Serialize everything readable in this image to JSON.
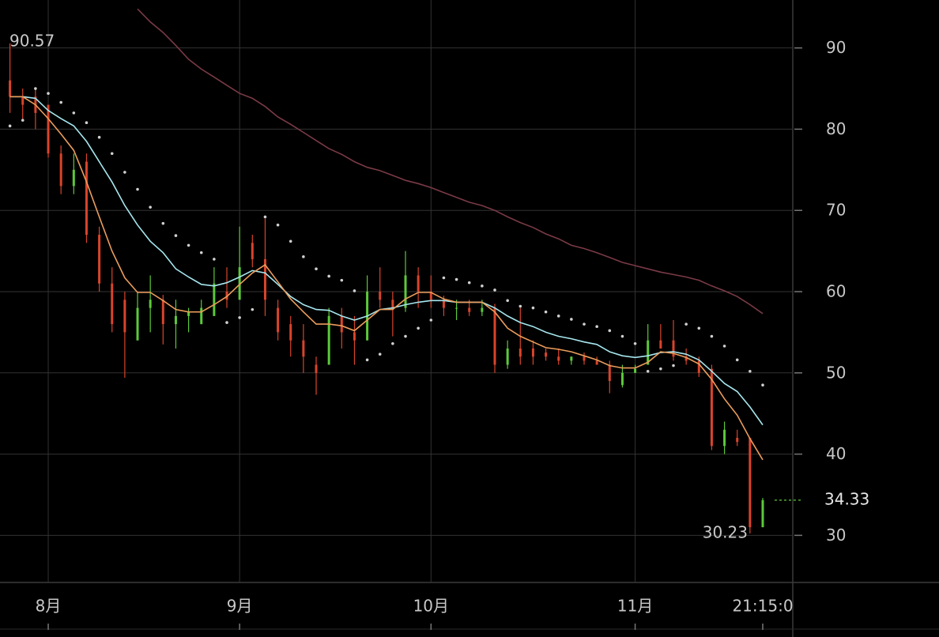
{
  "chart_data": {
    "type": "ohlc",
    "categories": [
      null,
      null,
      null,
      "8月",
      null,
      null,
      null,
      null,
      null,
      null,
      null,
      null,
      null,
      null,
      null,
      null,
      null,
      null,
      "9月",
      null,
      null,
      null,
      null,
      null,
      null,
      null,
      null,
      null,
      null,
      null,
      null,
      null,
      null,
      "10月",
      null,
      null,
      null,
      null,
      null,
      null,
      null,
      null,
      null,
      null,
      null,
      null,
      null,
      null,
      null,
      "11月",
      null,
      null,
      null,
      null,
      null,
      null,
      null,
      null,
      null,
      "21:15:0"
    ],
    "open": [
      86,
      84,
      84,
      83,
      77,
      73,
      76,
      67,
      61,
      59,
      54,
      58,
      59,
      56,
      57,
      56,
      57,
      60,
      59,
      66,
      64,
      58,
      56,
      54,
      51,
      51,
      57,
      55,
      54,
      60,
      59,
      58,
      62,
      60,
      59,
      58,
      58,
      57.5,
      58,
      51,
      53,
      53,
      52.5,
      52,
      51.5,
      52,
      51.5,
      51,
      48.5,
      50,
      51,
      54,
      54,
      52,
      51.5,
      50.5,
      41,
      42,
      42,
      31
    ],
    "high": [
      90.57,
      85,
      85,
      83,
      78,
      77,
      77,
      68,
      63,
      60,
      60,
      62,
      59.6,
      59,
      58,
      59,
      63,
      63,
      68,
      67,
      69,
      59,
      57,
      56,
      52,
      58,
      58,
      57,
      62,
      63,
      60,
      65,
      63,
      62,
      59.5,
      59,
      59,
      59,
      58.5,
      54,
      58,
      54,
      53,
      53,
      52,
      52.5,
      52,
      51.5,
      51,
      51,
      56,
      56,
      56.5,
      53,
      52,
      51,
      44,
      43,
      42,
      34.6
    ],
    "low": [
      82,
      81,
      80,
      76.5,
      72,
      72,
      66,
      60,
      55,
      49.4,
      54,
      55,
      53.5,
      53,
      55,
      56,
      57,
      58,
      59,
      63,
      57,
      54,
      52,
      50,
      47.3,
      51,
      53,
      51,
      54,
      58,
      54.5,
      57.5,
      58,
      58,
      57,
      56.5,
      57,
      57,
      50,
      50.5,
      51,
      51,
      51.5,
      51,
      51,
      51,
      51,
      47.5,
      48.2,
      50,
      51,
      53,
      51.5,
      51,
      49.5,
      40.5,
      40,
      41,
      30.23,
      31
    ],
    "close": [
      84,
      83,
      82,
      77,
      73,
      75,
      67,
      61,
      56,
      55,
      58,
      59,
      56,
      57,
      57.5,
      58,
      61,
      59,
      63,
      64,
      59,
      55,
      54,
      52,
      50,
      57,
      55,
      54,
      60,
      59,
      58,
      62,
      60,
      59,
      58,
      58,
      57.5,
      58,
      51,
      53,
      52,
      52,
      52,
      51.5,
      52,
      51.5,
      51,
      49,
      50,
      50.5,
      54,
      53,
      52,
      51.5,
      50,
      41,
      43,
      41.5,
      31,
      34.33
    ],
    "up_color": "#5cc93a",
    "down_color": "#d9442b",
    "lines": [
      {
        "color": "#7a3a46",
        "style": "solid",
        "values": [
          null,
          null,
          null,
          null,
          null,
          null,
          null,
          null,
          null,
          null,
          94.8,
          93.2,
          91.9,
          90.3,
          88.6,
          87.4,
          86.4,
          85.4,
          84.4,
          83.8,
          82.8,
          81.5,
          80.6,
          79.6,
          78.6,
          77.6,
          76.9,
          76,
          75.3,
          74.9,
          74.3,
          73.7,
          73.3,
          72.8,
          72.2,
          71.6,
          71,
          70.6,
          70,
          69.2,
          68.5,
          67.9,
          67.1,
          66.5,
          65.7,
          65.3,
          64.8,
          64.2,
          63.6,
          63.2,
          62.8,
          62.4,
          62.1,
          61.8,
          61.4,
          60.7,
          60.1,
          59.4,
          58.4,
          57.3
        ]
      },
      {
        "color": "#a6e6ee",
        "style": "solid",
        "values": [
          84,
          84,
          83.8,
          82.3,
          81.3,
          80.4,
          78.5,
          76,
          73.5,
          70.6,
          68.2,
          66.2,
          64.8,
          62.8,
          61.8,
          60.9,
          60.7,
          61.1,
          61.8,
          62.6,
          62.3,
          60.9,
          59.4,
          58.4,
          57.8,
          57.7,
          57,
          56.5,
          57,
          57.8,
          58,
          58.4,
          58.7,
          58.9,
          58.9,
          58.7,
          58.7,
          58.7,
          58,
          57,
          56.2,
          55.7,
          55,
          54.5,
          54.2,
          53.8,
          53.5,
          52.6,
          52.1,
          51.9,
          52.1,
          52.5,
          52.6,
          52.3,
          51.6,
          50.2,
          48.7,
          47.7,
          45.8,
          43.6
        ]
      },
      {
        "color": "#eb9d5c",
        "style": "solid",
        "values": [
          84,
          84,
          83,
          81.3,
          79.4,
          77.4,
          73.5,
          69.2,
          65,
          61.7,
          59.9,
          59.9,
          58.9,
          57.8,
          57.5,
          57.5,
          58.4,
          59.4,
          60.9,
          62.3,
          63.3,
          61.2,
          59.1,
          57.5,
          56,
          56,
          55.8,
          55.2,
          56.5,
          57.8,
          57.8,
          59.1,
          59.9,
          59.9,
          59.1,
          58.7,
          58.7,
          58.7,
          57.5,
          55.5,
          54.5,
          53.8,
          53.1,
          52.9,
          52.6,
          52.1,
          51.6,
          50.9,
          50.6,
          50.6,
          51.3,
          52.6,
          52.4,
          51.9,
          51.1,
          49.2,
          46.8,
          44.8,
          41.9,
          39.3
        ]
      },
      {
        "color": "#d0d0d0",
        "style": "dotted",
        "values": [
          80.4,
          81.1,
          85,
          84.4,
          83.3,
          82,
          80.8,
          79,
          77,
          74.7,
          72.6,
          70.4,
          68.4,
          66.9,
          65.7,
          64.8,
          64,
          56.2,
          56.8,
          57.8,
          69.2,
          68.2,
          66.2,
          64.3,
          62.8,
          61.9,
          61.4,
          60.1,
          51.6,
          52.3,
          53.6,
          54.5,
          55.5,
          56.5,
          61.7,
          61.5,
          61.1,
          60.7,
          60.2,
          58.9,
          58.2,
          58,
          57.5,
          57,
          56.6,
          56,
          55.7,
          55.2,
          54.5,
          53.6,
          50.2,
          50.5,
          50.9,
          56,
          55.5,
          54.5,
          53.3,
          51.6,
          50.2,
          48.5
        ]
      }
    ],
    "ylim": [
      24.2,
      95.9
    ],
    "yticks": [
      30,
      40,
      50,
      60,
      70,
      80,
      90
    ],
    "grid": true,
    "high_label": 90.57,
    "low_label": 30.23,
    "last_price": 34.33,
    "last_color": "#5cc93a"
  }
}
